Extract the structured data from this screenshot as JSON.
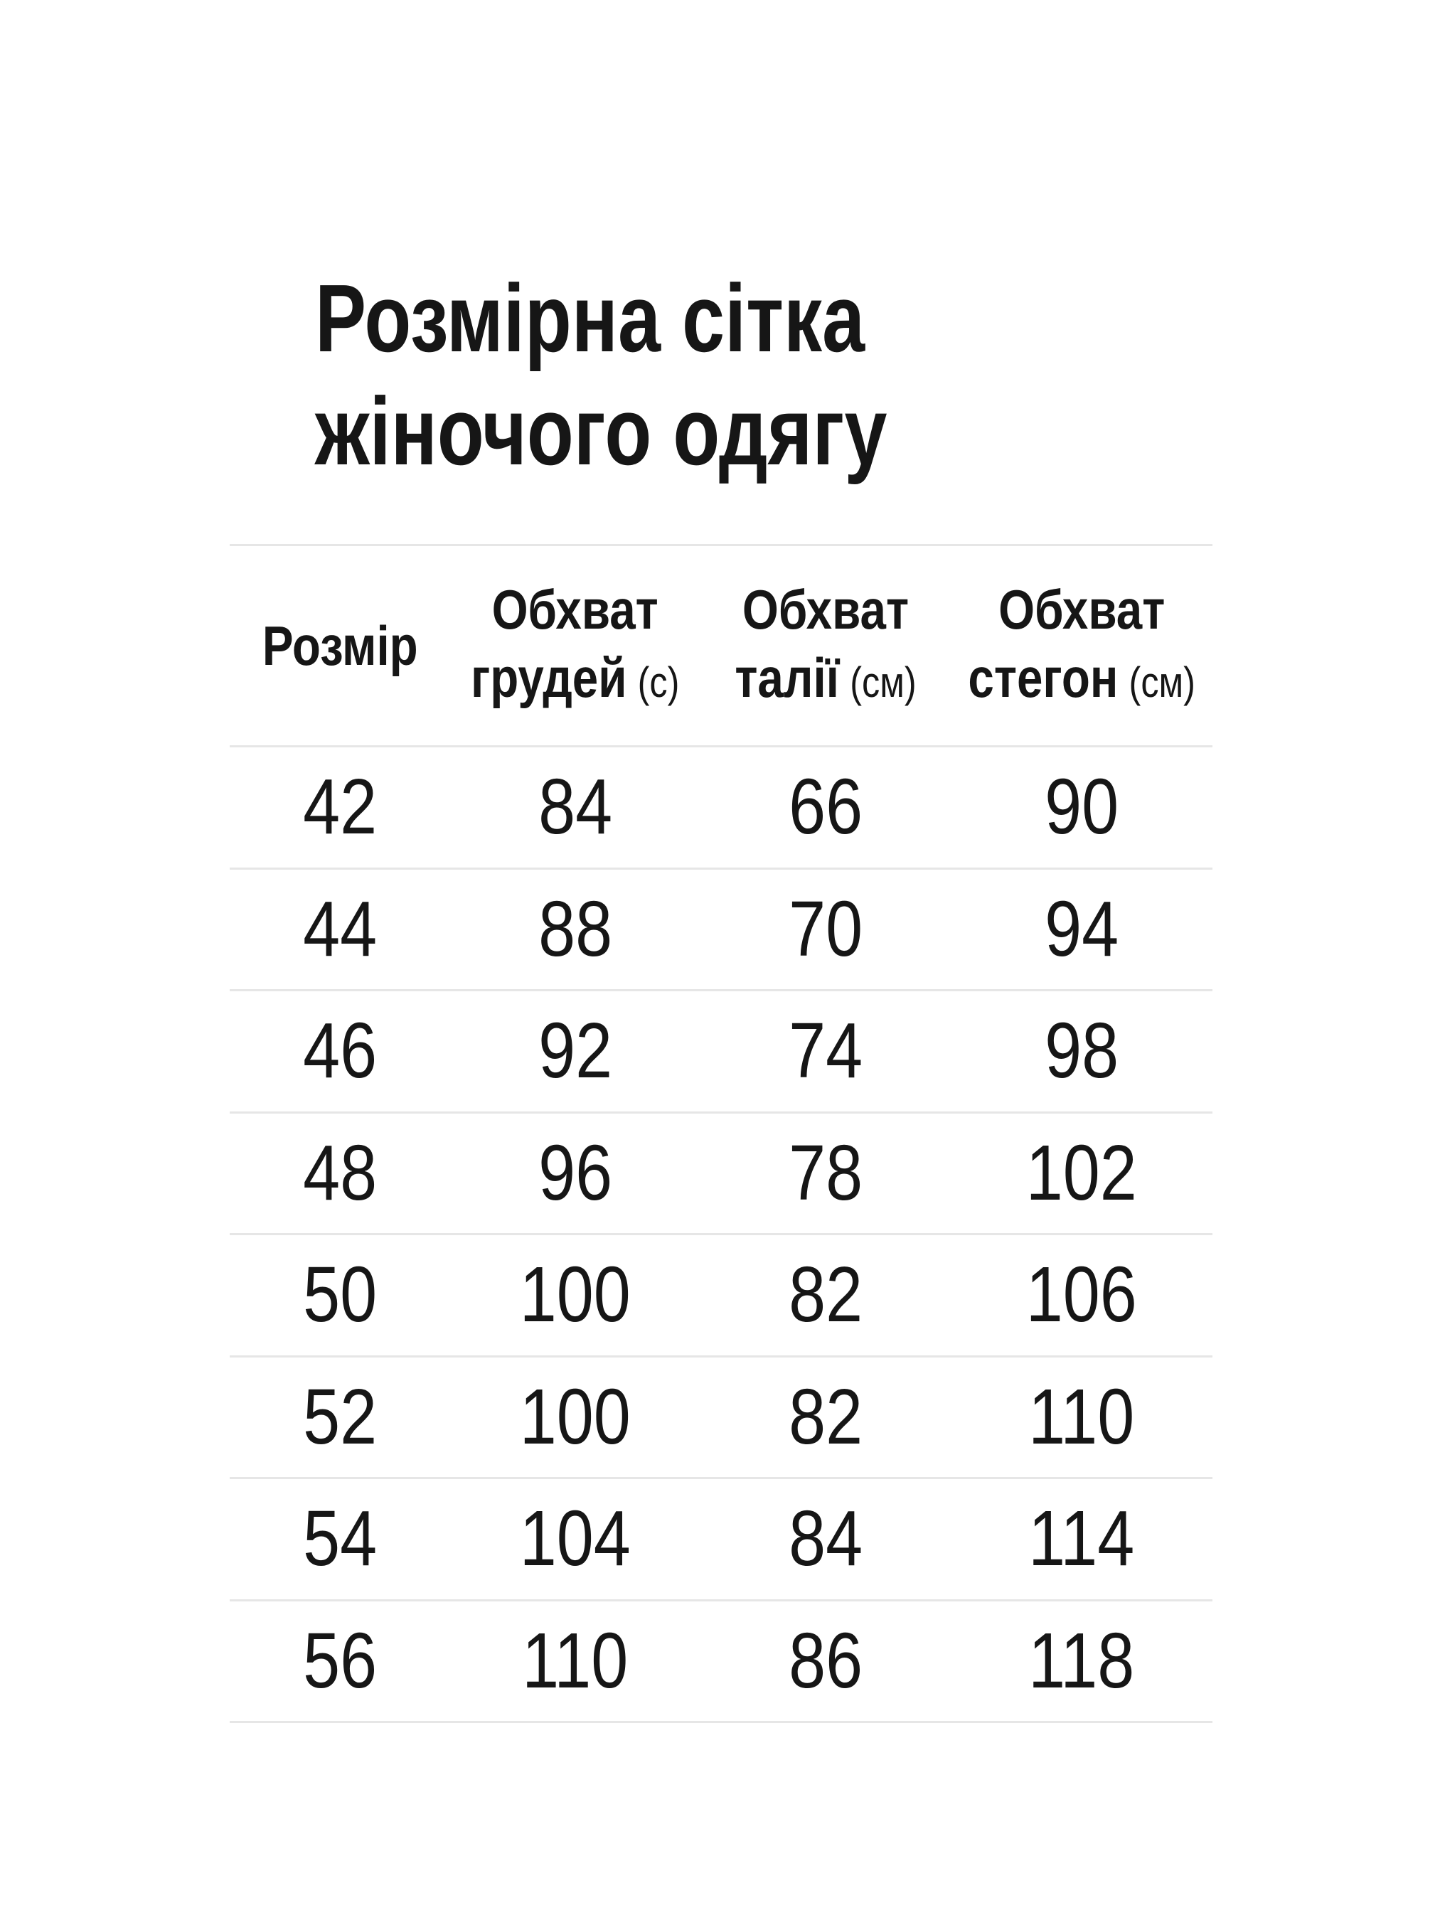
{
  "title": {
    "line1": "Розмірна сітка",
    "line2": "жіночого одягу"
  },
  "table": {
    "size_header": "Розмір",
    "measure_headers": [
      {
        "line1": "Обхват",
        "line2": "грудей",
        "unit": "(с)"
      },
      {
        "line1": "Обхват",
        "line2": "талії",
        "unit": "(см)"
      },
      {
        "line1": "Обхват",
        "line2": "стегон",
        "unit": "(см)"
      }
    ],
    "rows": [
      {
        "size": "42",
        "chest": "84",
        "waist": "66",
        "hips": "90"
      },
      {
        "size": "44",
        "chest": "88",
        "waist": "70",
        "hips": "94"
      },
      {
        "size": "46",
        "chest": "92",
        "waist": "74",
        "hips": "98"
      },
      {
        "size": "48",
        "chest": "96",
        "waist": "78",
        "hips": "102"
      },
      {
        "size": "50",
        "chest": "100",
        "waist": "82",
        "hips": "106"
      },
      {
        "size": "52",
        "chest": "100",
        "waist": "82",
        "hips": "110"
      },
      {
        "size": "54",
        "chest": "104",
        "waist": "84",
        "hips": "114"
      },
      {
        "size": "56",
        "chest": "110",
        "waist": "86",
        "hips": "118"
      }
    ]
  },
  "colors": {
    "background": "#ffffff",
    "text": "#161616",
    "divider": "#e6e6e6"
  }
}
